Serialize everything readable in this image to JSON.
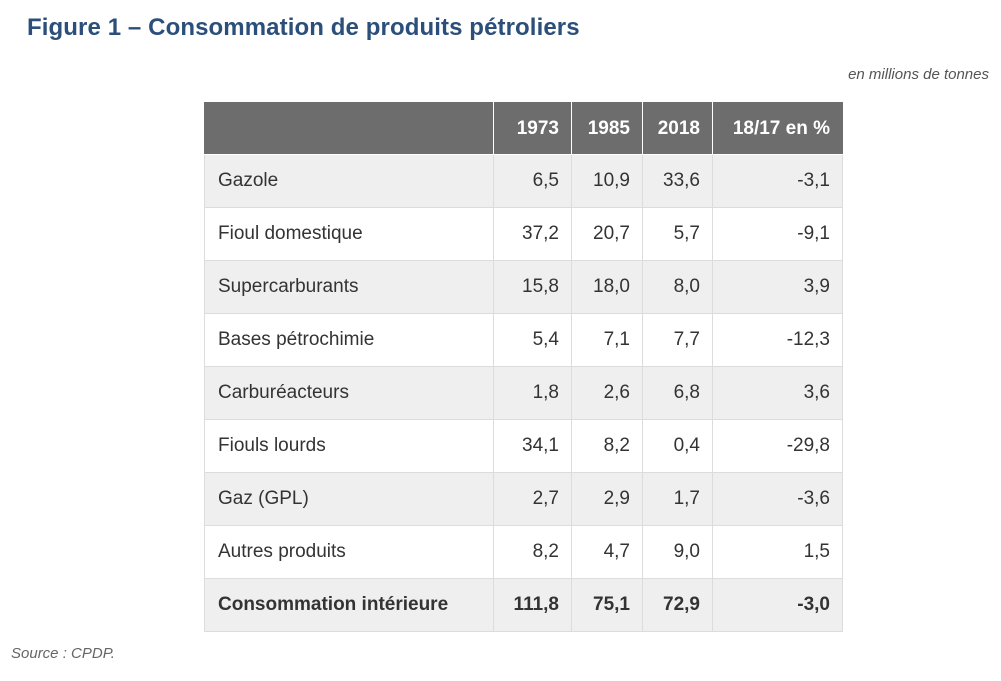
{
  "figure": {
    "title": "Figure 1 – Consommation de produits pétroliers",
    "units": "en millions de tonnes",
    "source": "Source : CPDP."
  },
  "table": {
    "headers": [
      "",
      "1973",
      "1985",
      "2018",
      "18/17 en %"
    ],
    "rows": [
      {
        "label": "Gazole",
        "v1973": "6,5",
        "v1985": "10,9",
        "v2018": "33,6",
        "change": "-3,1"
      },
      {
        "label": "Fioul domestique",
        "v1973": "37,2",
        "v1985": "20,7",
        "v2018": "5,7",
        "change": "-9,1"
      },
      {
        "label": "Supercarburants",
        "v1973": "15,8",
        "v1985": "18,0",
        "v2018": "8,0",
        "change": "3,9"
      },
      {
        "label": "Bases pétrochimie",
        "v1973": "5,4",
        "v1985": "7,1",
        "v2018": "7,7",
        "change": "-12,3"
      },
      {
        "label": "Carburéacteurs",
        "v1973": "1,8",
        "v1985": "2,6",
        "v2018": "6,8",
        "change": "3,6"
      },
      {
        "label": "Fiouls lourds",
        "v1973": "34,1",
        "v1985": "8,2",
        "v2018": "0,4",
        "change": "-29,8"
      },
      {
        "label": "Gaz (GPL)",
        "v1973": "2,7",
        "v1985": "2,9",
        "v2018": "1,7",
        "change": "-3,6"
      },
      {
        "label": "Autres produits",
        "v1973": "8,2",
        "v1985": "4,7",
        "v2018": "9,0",
        "change": "1,5"
      },
      {
        "label": "Consommation intérieure",
        "v1973": "111,8",
        "v1985": "75,1",
        "v2018": "72,9",
        "change": "-3,0"
      }
    ]
  },
  "colors": {
    "title": "#2b4f7a",
    "header_bg": "#6d6d6d",
    "row_shade": "#efefef"
  }
}
